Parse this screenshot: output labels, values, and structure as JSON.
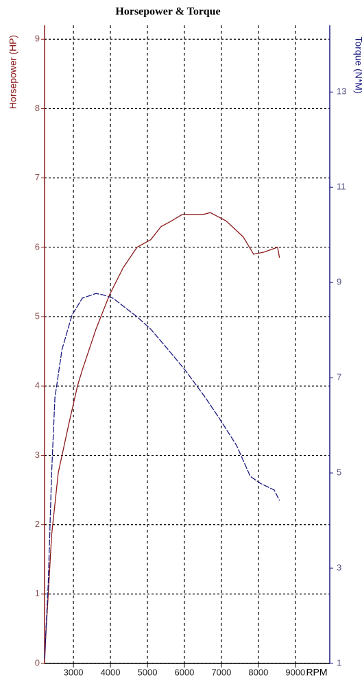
{
  "chart_data": {
    "type": "line",
    "title": "Horsepower & Torque",
    "ylabel": "Horsepower (HP)",
    "y2label": "Torque (N*M)",
    "xlabel": "RPM",
    "xlim": [
      2220,
      9930
    ],
    "xticks": [
      3000,
      4000,
      5000,
      6000,
      7000,
      8000,
      9000
    ],
    "ylim": [
      0,
      9.2
    ],
    "yticks": [
      0,
      1,
      2,
      3,
      4,
      5,
      6,
      7,
      8,
      9
    ],
    "y2lim": [
      1,
      14.4
    ],
    "y2ticks": [
      1,
      3,
      5,
      7,
      9,
      11,
      13
    ],
    "grid": true,
    "series": [
      {
        "name": "Horsepower",
        "color": "#8b1a1a",
        "axis": "y",
        "x": [
          2220,
          2260,
          2320,
          2410,
          2590,
          2870,
          3110,
          3240,
          3610,
          3980,
          4350,
          4720,
          5090,
          5370,
          5650,
          5930,
          6480,
          6700,
          7130,
          7590,
          7870,
          8150,
          8520,
          8570
        ],
        "values": [
          0,
          0.47,
          1,
          1.85,
          2.75,
          3.44,
          4,
          4.23,
          4.82,
          5.32,
          5.71,
          6,
          6.11,
          6.3,
          6.38,
          6.47,
          6.47,
          6.5,
          6.38,
          6.15,
          5.9,
          5.93,
          6,
          5.85
        ]
      },
      {
        "name": "Torque",
        "color": "#1a1a80",
        "axis": "y2",
        "x": [
          2220,
          2320,
          2410,
          2500,
          2690,
          2960,
          3240,
          3610,
          3800,
          4070,
          4720,
          5090,
          5560,
          6020,
          6570,
          6940,
          7410,
          7780,
          8060,
          8430,
          8570
        ],
        "values": [
          1.1,
          2.7,
          5.0,
          6.58,
          7.59,
          8.31,
          8.67,
          8.77,
          8.74,
          8.67,
          8.28,
          8.02,
          7.59,
          7.16,
          6.58,
          6.15,
          5.58,
          4.93,
          4.78,
          4.64,
          4.42
        ]
      }
    ]
  }
}
